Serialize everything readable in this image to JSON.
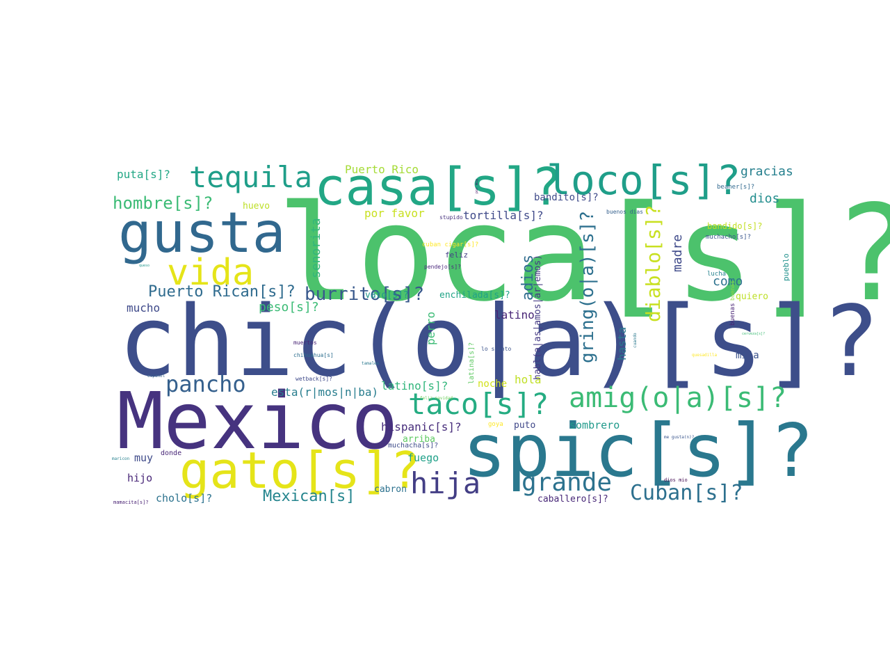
{
  "words": [
    {
      "text": "loca[s]?",
      "color": "#4cc26c"
    },
    {
      "text": "chic(o|a)[s]?",
      "color": "#3d4e8a"
    },
    {
      "text": "Mexico",
      "color": "#46337f"
    },
    {
      "text": "spic[s]?",
      "color": "#2a788e"
    },
    {
      "text": "gusta",
      "color": "#31688e"
    },
    {
      "text": "casa[s]?",
      "color": "#22a785"
    },
    {
      "text": "loco[s]?",
      "color": "#1f9e89"
    },
    {
      "text": "gato[s]?",
      "color": "#e5e419"
    },
    {
      "text": "tequila",
      "color": "#1f9e89"
    },
    {
      "text": "vida",
      "color": "#e5e419"
    },
    {
      "text": "taco[s]?",
      "color": "#25ac82"
    },
    {
      "text": "amig(o|a)[s]?",
      "color": "#3bbb75"
    },
    {
      "text": "hija",
      "color": "#433e85"
    },
    {
      "text": "grande",
      "color": "#2c728e"
    },
    {
      "text": "pancho",
      "color": "#35608d"
    },
    {
      "text": "Cuban[s]?",
      "color": "#2d708e"
    },
    {
      "text": "hombre[s]?",
      "color": "#3bbb75"
    },
    {
      "text": "burrito[s]?",
      "color": "#38588c"
    },
    {
      "text": "Puerto Rican[s]?",
      "color": "#2f6b8e"
    },
    {
      "text": "Mexican[s]",
      "color": "#25858e"
    },
    {
      "text": "gracias",
      "color": "#27808e"
    },
    {
      "text": "dios",
      "color": "#228d8d"
    },
    {
      "text": "como",
      "color": "#2c728e"
    },
    {
      "text": "puta[s]?",
      "color": "#22a785"
    },
    {
      "text": "Puerto Rico",
      "color": "#a5db36"
    },
    {
      "text": "huevo",
      "color": "#bddf26"
    },
    {
      "text": "por favor",
      "color": "#c8e020"
    },
    {
      "text": "tortilla[s]?",
      "color": "#3e4989"
    },
    {
      "text": "bandito[s]?",
      "color": "#3e4a89"
    },
    {
      "text": "peso[s]?",
      "color": "#3bbb75"
    },
    {
      "text": "mucho",
      "color": "#3e4989"
    },
    {
      "text": "enchilada[s]?",
      "color": "#20a386"
    },
    {
      "text": "latino",
      "color": "#482576"
    },
    {
      "text": "vato[s]?",
      "color": "#1f978b"
    },
    {
      "text": "hola",
      "color": "#c0df25"
    },
    {
      "text": "noche",
      "color": "#d2e21b"
    },
    {
      "text": "esta(r|mos|n|ba)",
      "color": "#287d8e"
    },
    {
      "text": "latino[s]?",
      "color": "#31b57b"
    },
    {
      "text": "hispanic[s]?",
      "color": "#472d7b"
    },
    {
      "text": "sombrero",
      "color": "#1f998a"
    },
    {
      "text": "puto",
      "color": "#3f4788"
    },
    {
      "text": "arriba",
      "color": "#5ec962"
    },
    {
      "text": "muchacha[s]?",
      "color": "#3e4c8a"
    },
    {
      "text": "fuego",
      "color": "#1fa088"
    },
    {
      "text": "muy",
      "color": "#3e4a89"
    },
    {
      "text": "hijo",
      "color": "#482677"
    },
    {
      "text": "cholo[s]?",
      "color": "#2c728e"
    },
    {
      "text": "cabron",
      "color": "#2c718e"
    },
    {
      "text": "caballero[s]?",
      "color": "#482878"
    },
    {
      "text": "mija",
      "color": "#3b528b"
    },
    {
      "text": "quiero",
      "color": "#bddf26"
    },
    {
      "text": "bandido[s]?",
      "color": "#c2df23"
    },
    {
      "text": "muchacho[s]?",
      "color": "#39568c"
    },
    {
      "text": "beaner[s]?",
      "color": "#31688e"
    },
    {
      "text": "buenos dias",
      "color": "#34608d"
    },
    {
      "text": "stupido",
      "color": "#46327e"
    },
    {
      "text": "cuban cigar[s]?",
      "color": "#fde725"
    },
    {
      "text": "feliz",
      "color": "#433e85"
    },
    {
      "text": "pendejo[s]?",
      "color": "#4c2a7d"
    },
    {
      "text": "lucha",
      "color": "#26828e"
    },
    {
      "text": "lo siento",
      "color": "#3b528b"
    },
    {
      "text": "muertos",
      "color": "#482475"
    },
    {
      "text": "chihuahua[s]",
      "color": "#2e6e8e"
    },
    {
      "text": "wetback[s]?",
      "color": "#3e4989"
    },
    {
      "text": "tamales",
      "color": "#2a788e"
    },
    {
      "text": "espanol",
      "color": "#35608d"
    },
    {
      "text": "goya",
      "color": "#fde725"
    },
    {
      "text": "donde",
      "color": "#482677"
    },
    {
      "text": "maricon",
      "color": "#27808e"
    },
    {
      "text": "feliz navidad",
      "color": "#6ccd5a"
    },
    {
      "text": "mamacita[s]?",
      "color": "#482173"
    },
    {
      "text": "me gusta(n)?",
      "color": "#39558c"
    },
    {
      "text": "dios mio",
      "color": "#450d54"
    },
    {
      "text": "cerveza[s]?",
      "color": "#3dbc74"
    },
    {
      "text": "queso",
      "color": "#1f968b"
    },
    {
      "text": "buenas",
      "color": "#90d743"
    },
    {
      "text": "cuando",
      "color": "#2a788e"
    },
    {
      "text": "quesadilla",
      "color": "#fde725"
    },
    {
      "text": "senorita",
      "color": "#32b67a"
    },
    {
      "text": "adios",
      "color": "#2f6c8e"
    },
    {
      "text": "gring(o|a)[s]?",
      "color": "#2d708e"
    },
    {
      "text": "diablo[s]?",
      "color": "#c8e020"
    },
    {
      "text": "madre",
      "color": "#3e4989"
    },
    {
      "text": "perro",
      "color": "#3bbb75"
    },
    {
      "text": "habl(a|as|amos|ar|emos)",
      "color": "#443983"
    },
    {
      "text": "latina[s]?",
      "color": "#5ec962"
    },
    {
      "text": "hasta",
      "color": "#2a788e"
    },
    {
      "text": "buenas",
      "color": "#482475"
    },
    {
      "text": "pueblo",
      "color": "#21918c"
    },
    {
      "text": "por muy",
      "color": "#471365"
    }
  ]
}
